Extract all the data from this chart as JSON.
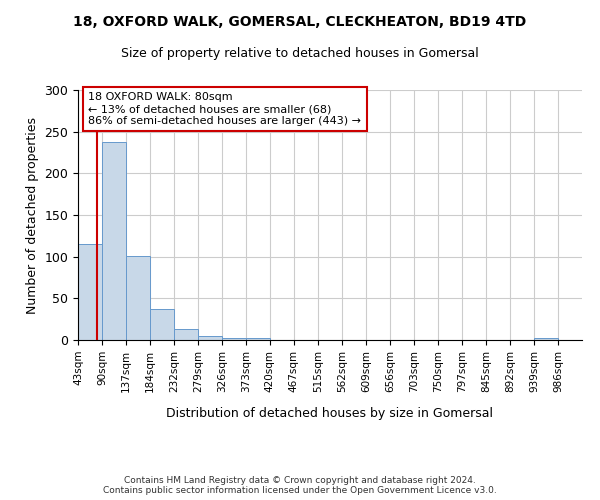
{
  "title1": "18, OXFORD WALK, GOMERSAL, CLECKHEATON, BD19 4TD",
  "title2": "Size of property relative to detached houses in Gomersal",
  "xlabel": "Distribution of detached houses by size in Gomersal",
  "ylabel": "Number of detached properties",
  "footer1": "Contains HM Land Registry data © Crown copyright and database right 2024.",
  "footer2": "Contains public sector information licensed under the Open Government Licence v3.0.",
  "bin_edges": [
    43,
    90,
    137,
    184,
    232,
    279,
    326,
    373,
    420,
    467,
    515,
    562,
    609,
    656,
    703,
    750,
    797,
    845,
    892,
    939,
    986
  ],
  "bar_heights": [
    115,
    238,
    101,
    37,
    13,
    5,
    2,
    3,
    0,
    0,
    0,
    0,
    0,
    0,
    0,
    0,
    0,
    0,
    0,
    2
  ],
  "bar_color": "#c8d8e8",
  "bar_edge_color": "#6699cc",
  "vline_x": 80,
  "vline_color": "#cc0000",
  "annotation_text": "18 OXFORD WALK: 80sqm\n← 13% of detached houses are smaller (68)\n86% of semi-detached houses are larger (443) →",
  "annotation_box_color": "#ffffff",
  "annotation_edge_color": "#cc0000",
  "ylim": [
    0,
    300
  ],
  "yticks": [
    0,
    50,
    100,
    150,
    200,
    250,
    300
  ],
  "bg_color": "#ffffff",
  "grid_color": "#cccccc",
  "title_fontsize1": 10,
  "title_fontsize2": 9
}
